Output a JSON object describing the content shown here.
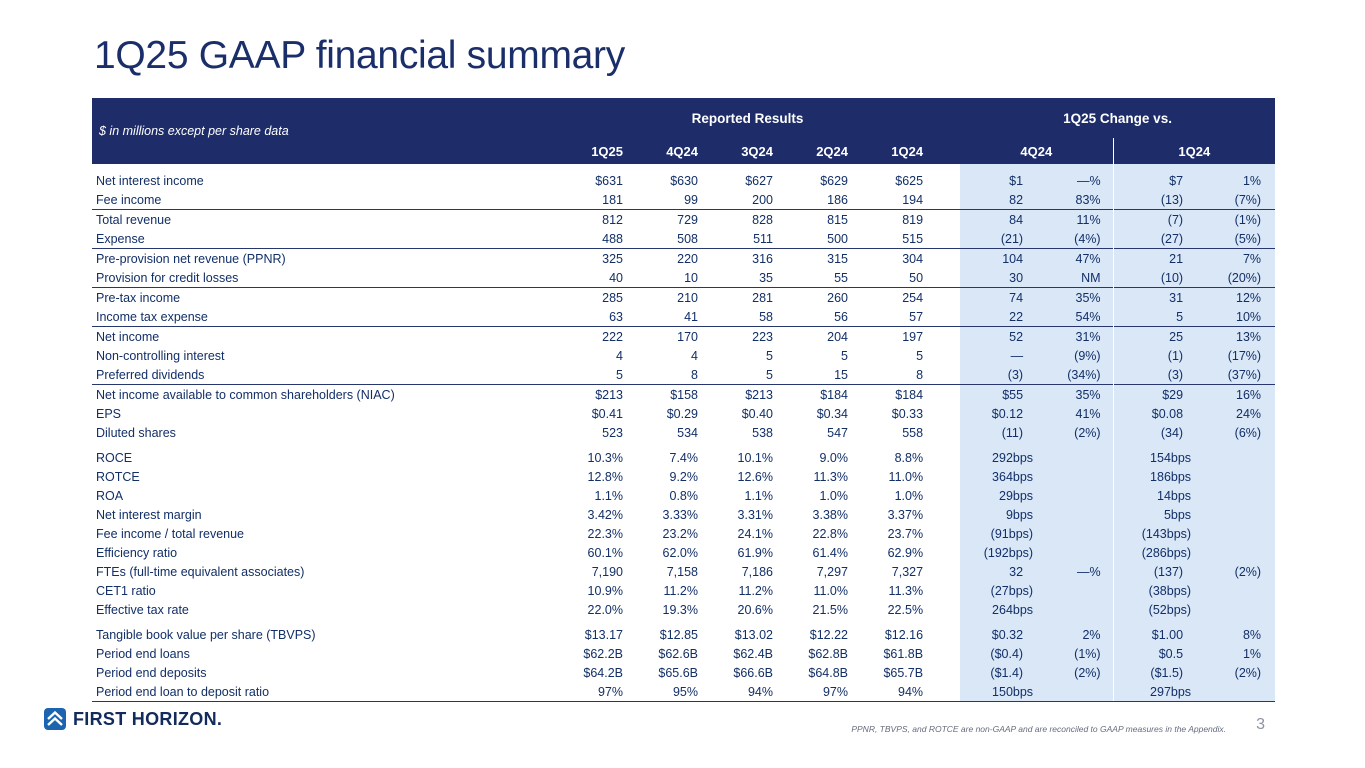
{
  "slide": {
    "title": "1Q25 GAAP financial summary",
    "footnote": "PPNR, TBVPS, and ROTCE are non-GAAP and are reconciled to GAAP measures in the Appendix.",
    "page_number": "3",
    "logo_text": "FIRST HORIZON."
  },
  "colors": {
    "title": "#1a2e6a",
    "header_bg": "#1e2d69",
    "table_text": "#122f67",
    "change_bg": "#d9e7f7",
    "rule": "#27376e",
    "footnote": "#646c7c",
    "page_number": "#8d93a0",
    "logo_navy": "#122a5c",
    "logo_blue": "#1c63b0"
  },
  "table": {
    "unit_label": "$ in millions except per share data",
    "group_headers": {
      "reported": "Reported Results",
      "change": "1Q25 Change vs."
    },
    "columns": [
      "1Q25",
      "4Q24",
      "3Q24",
      "2Q24",
      "1Q24"
    ],
    "change_columns": [
      "4Q24",
      "1Q24"
    ],
    "rows": [
      {
        "label": "Net interest income",
        "values": [
          "$631",
          "$630",
          "$627",
          "$629",
          "$625"
        ],
        "chg4q": [
          "$1",
          "—%"
        ],
        "chg1q": [
          "$7",
          "1%"
        ]
      },
      {
        "label": "Fee income",
        "values": [
          "181",
          "99",
          "200",
          "186",
          "194"
        ],
        "chg4q": [
          "82",
          "83%"
        ],
        "chg1q": [
          "(13)",
          "(7%)"
        ]
      },
      {
        "label": "Total revenue",
        "values": [
          "812",
          "729",
          "828",
          "815",
          "819"
        ],
        "chg4q": [
          "84",
          "11%"
        ],
        "chg1q": [
          "(7)",
          "(1%)"
        ],
        "rule": true
      },
      {
        "label": "Expense",
        "values": [
          "488",
          "508",
          "511",
          "500",
          "515"
        ],
        "chg4q": [
          "(21)",
          "(4%)"
        ],
        "chg1q": [
          "(27)",
          "(5%)"
        ]
      },
      {
        "label": "Pre-provision net revenue (PPNR)",
        "values": [
          "325",
          "220",
          "316",
          "315",
          "304"
        ],
        "chg4q": [
          "104",
          "47%"
        ],
        "chg1q": [
          "21",
          "7%"
        ],
        "rule": true
      },
      {
        "label": "Provision for credit losses",
        "values": [
          "40",
          "10",
          "35",
          "55",
          "50"
        ],
        "chg4q": [
          "30",
          "NM"
        ],
        "chg1q": [
          "(10)",
          "(20%)"
        ]
      },
      {
        "label": "Pre-tax income",
        "values": [
          "285",
          "210",
          "281",
          "260",
          "254"
        ],
        "chg4q": [
          "74",
          "35%"
        ],
        "chg1q": [
          "31",
          "12%"
        ],
        "rule": true
      },
      {
        "label": "Income tax expense",
        "values": [
          "63",
          "41",
          "58",
          "56",
          "57"
        ],
        "chg4q": [
          "22",
          "54%"
        ],
        "chg1q": [
          "5",
          "10%"
        ]
      },
      {
        "label": "Net income",
        "values": [
          "222",
          "170",
          "223",
          "204",
          "197"
        ],
        "chg4q": [
          "52",
          "31%"
        ],
        "chg1q": [
          "25",
          "13%"
        ],
        "rule": true
      },
      {
        "label": "Non-controlling interest",
        "values": [
          "4",
          "4",
          "5",
          "5",
          "5"
        ],
        "chg4q": [
          "—",
          "(9%)"
        ],
        "chg1q": [
          "(1)",
          "(17%)"
        ]
      },
      {
        "label": "Preferred dividends",
        "values": [
          "5",
          "8",
          "5",
          "15",
          "8"
        ],
        "chg4q": [
          "(3)",
          "(34%)"
        ],
        "chg1q": [
          "(3)",
          "(37%)"
        ]
      },
      {
        "label": "Net income available to common shareholders (NIAC)",
        "values": [
          "$213",
          "$158",
          "$213",
          "$184",
          "$184"
        ],
        "chg4q": [
          "$55",
          "35%"
        ],
        "chg1q": [
          "$29",
          "16%"
        ],
        "rule": true
      },
      {
        "label": "EPS",
        "values": [
          "$0.41",
          "$0.29",
          "$0.40",
          "$0.34",
          "$0.33"
        ],
        "chg4q": [
          "$0.12",
          "41%"
        ],
        "chg1q": [
          "$0.08",
          "24%"
        ]
      },
      {
        "label": "Diluted shares",
        "values": [
          "523",
          "534",
          "538",
          "547",
          "558"
        ],
        "chg4q": [
          "(11)",
          "(2%)"
        ],
        "chg1q": [
          "(34)",
          "(6%)"
        ]
      },
      {
        "label": "ROCE",
        "values": [
          "10.3%",
          "7.4%",
          "10.1%",
          "9.0%",
          "8.8%"
        ],
        "chg4q": [
          "292bps"
        ],
        "chg1q": [
          "154bps"
        ],
        "gap": true
      },
      {
        "label": "ROTCE",
        "values": [
          "12.8%",
          "9.2%",
          "12.6%",
          "11.3%",
          "11.0%"
        ],
        "chg4q": [
          "364bps"
        ],
        "chg1q": [
          "186bps"
        ]
      },
      {
        "label": "ROA",
        "values": [
          "1.1%",
          "0.8%",
          "1.1%",
          "1.0%",
          "1.0%"
        ],
        "chg4q": [
          "29bps"
        ],
        "chg1q": [
          "14bps"
        ]
      },
      {
        "label": "Net interest margin",
        "values": [
          "3.42%",
          "3.33%",
          "3.31%",
          "3.38%",
          "3.37%"
        ],
        "chg4q": [
          "9bps"
        ],
        "chg1q": [
          "5bps"
        ]
      },
      {
        "label": "Fee income / total revenue",
        "values": [
          "22.3%",
          "23.2%",
          "24.1%",
          "22.8%",
          "23.7%"
        ],
        "chg4q": [
          "(91bps)"
        ],
        "chg1q": [
          "(143bps)"
        ]
      },
      {
        "label": "Efficiency ratio",
        "values": [
          "60.1%",
          "62.0%",
          "61.9%",
          "61.4%",
          "62.9%"
        ],
        "chg4q": [
          "(192bps)"
        ],
        "chg1q": [
          "(286bps)"
        ]
      },
      {
        "label": "FTEs (full-time equivalent associates)",
        "values": [
          "7,190",
          "7,158",
          "7,186",
          "7,297",
          "7,327"
        ],
        "chg4q": [
          "32",
          "—%"
        ],
        "chg1q": [
          "(137)",
          "(2%)"
        ]
      },
      {
        "label": "CET1 ratio",
        "values": [
          "10.9%",
          "11.2%",
          "11.2%",
          "11.0%",
          "11.3%"
        ],
        "chg4q": [
          "(27bps)"
        ],
        "chg1q": [
          "(38bps)"
        ]
      },
      {
        "label": "Effective tax rate",
        "values": [
          "22.0%",
          "19.3%",
          "20.6%",
          "21.5%",
          "22.5%"
        ],
        "chg4q": [
          "264bps"
        ],
        "chg1q": [
          "(52bps)"
        ]
      },
      {
        "label": "Tangible book value per share (TBVPS)",
        "values": [
          "$13.17",
          "$12.85",
          "$13.02",
          "$12.22",
          "$12.16"
        ],
        "chg4q": [
          "$0.32",
          "2%"
        ],
        "chg1q": [
          "$1.00",
          "8%"
        ],
        "gap": true
      },
      {
        "label": "Period end loans",
        "values": [
          "$62.2B",
          "$62.6B",
          "$62.4B",
          "$62.8B",
          "$61.8B"
        ],
        "chg4q": [
          "($0.4)",
          "(1%)"
        ],
        "chg1q": [
          "$0.5",
          "1%"
        ]
      },
      {
        "label": "Period end deposits",
        "values": [
          "$64.2B",
          "$65.6B",
          "$66.6B",
          "$64.8B",
          "$65.7B"
        ],
        "chg4q": [
          "($1.4)",
          "(2%)"
        ],
        "chg1q": [
          "($1.5)",
          "(2%)"
        ]
      },
      {
        "label": "Period end loan to deposit ratio",
        "values": [
          "97%",
          "95%",
          "94%",
          "97%",
          "94%"
        ],
        "chg4q": [
          "150bps"
        ],
        "chg1q": [
          "297bps"
        ]
      }
    ]
  }
}
